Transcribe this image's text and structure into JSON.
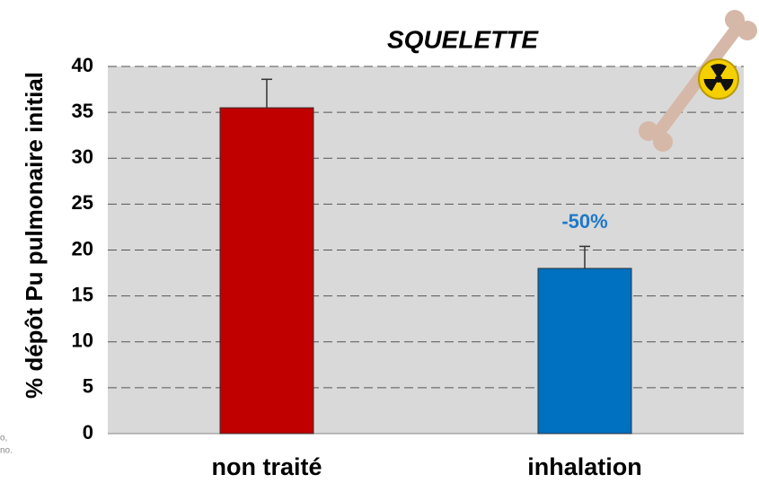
{
  "chart_data": {
    "type": "bar",
    "title": "SQUELETTE",
    "y_label": "% dépôt Pu pulmonaire initial",
    "categories": [
      "non traité",
      "inhalation"
    ],
    "values": [
      35.5,
      18
    ],
    "errors": [
      3.1,
      2.4
    ],
    "colors": [
      "#c00000",
      "#0070c0"
    ],
    "annotation": "-50%",
    "annotation_color": "#1f78c8",
    "ylim": [
      0,
      40
    ],
    "yticks": [
      0,
      5,
      10,
      15,
      20,
      25,
      30,
      35,
      40
    ],
    "grid": true,
    "fragments": [
      "o,",
      "no."
    ]
  }
}
